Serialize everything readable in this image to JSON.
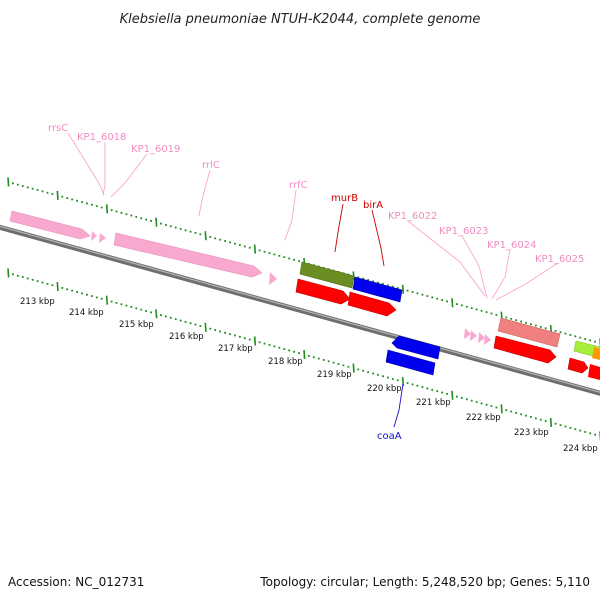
{
  "title": "Klebsiella pneumoniae NTUH-K2044, complete genome",
  "footer": {
    "accession": "Accession: NC_012731",
    "summary": "Topology: circular; Length: 5,248,520 bp; Genes: 5,110"
  },
  "colors": {
    "rrna": "#f9a8cf",
    "rrna_label": "#f08cc0",
    "cds_red": "#ff0000",
    "cds_olive": "#6b8e23",
    "cds_blue": "#0000ee",
    "cds_salmon": "#f08080",
    "cds_lightgreen": "#a6f03c",
    "cds_orange": "#ff9900",
    "label_dark_red": "#cc0000",
    "label_blue": "#1111cc",
    "tick_green": "#228b22",
    "backbone": "#8c8c8c"
  },
  "map": {
    "kbp_labels": [
      "213 kbp",
      "214 kbp",
      "215 kbp",
      "216 kbp",
      "217 kbp",
      "218 kbp",
      "219 kbp",
      "220 kbp",
      "221 kbp",
      "222 kbp",
      "223 kbp",
      "224 kbp"
    ]
  },
  "features": {
    "rrsC": {
      "label": "rrsC",
      "type": "rRNA",
      "icon": "rrna-arrow-icon"
    },
    "KP1_6018": {
      "label": "KP1_6018",
      "type": "tRNA",
      "icon": "trna-chevron-icon"
    },
    "KP1_6019": {
      "label": "KP1_6019",
      "type": "tRNA",
      "icon": "trna-chevron-icon"
    },
    "rrlC": {
      "label": "rrlC",
      "type": "rRNA",
      "icon": "rrna-arrow-icon"
    },
    "rrfC": {
      "label": "rrfC",
      "type": "rRNA",
      "icon": "trna-chevron-icon"
    },
    "murB": {
      "label": "murB",
      "type": "gene",
      "icon": "gene-arrow-icon"
    },
    "birA": {
      "label": "birA",
      "type": "gene",
      "icon": "gene-arrow-icon"
    },
    "KP1_6022": {
      "label": "KP1_6022",
      "type": "tRNA",
      "icon": "trna-chevron-icon"
    },
    "KP1_6023": {
      "label": "KP1_6023",
      "type": "tRNA",
      "icon": "trna-chevron-icon"
    },
    "KP1_6024": {
      "label": "KP1_6024",
      "type": "tRNA",
      "icon": "trna-chevron-icon"
    },
    "KP1_6025": {
      "label": "KP1_6025",
      "type": "tRNA",
      "icon": "trna-chevron-icon"
    },
    "coaA": {
      "label": "coaA",
      "type": "gene",
      "icon": "gene-arrow-icon"
    }
  }
}
